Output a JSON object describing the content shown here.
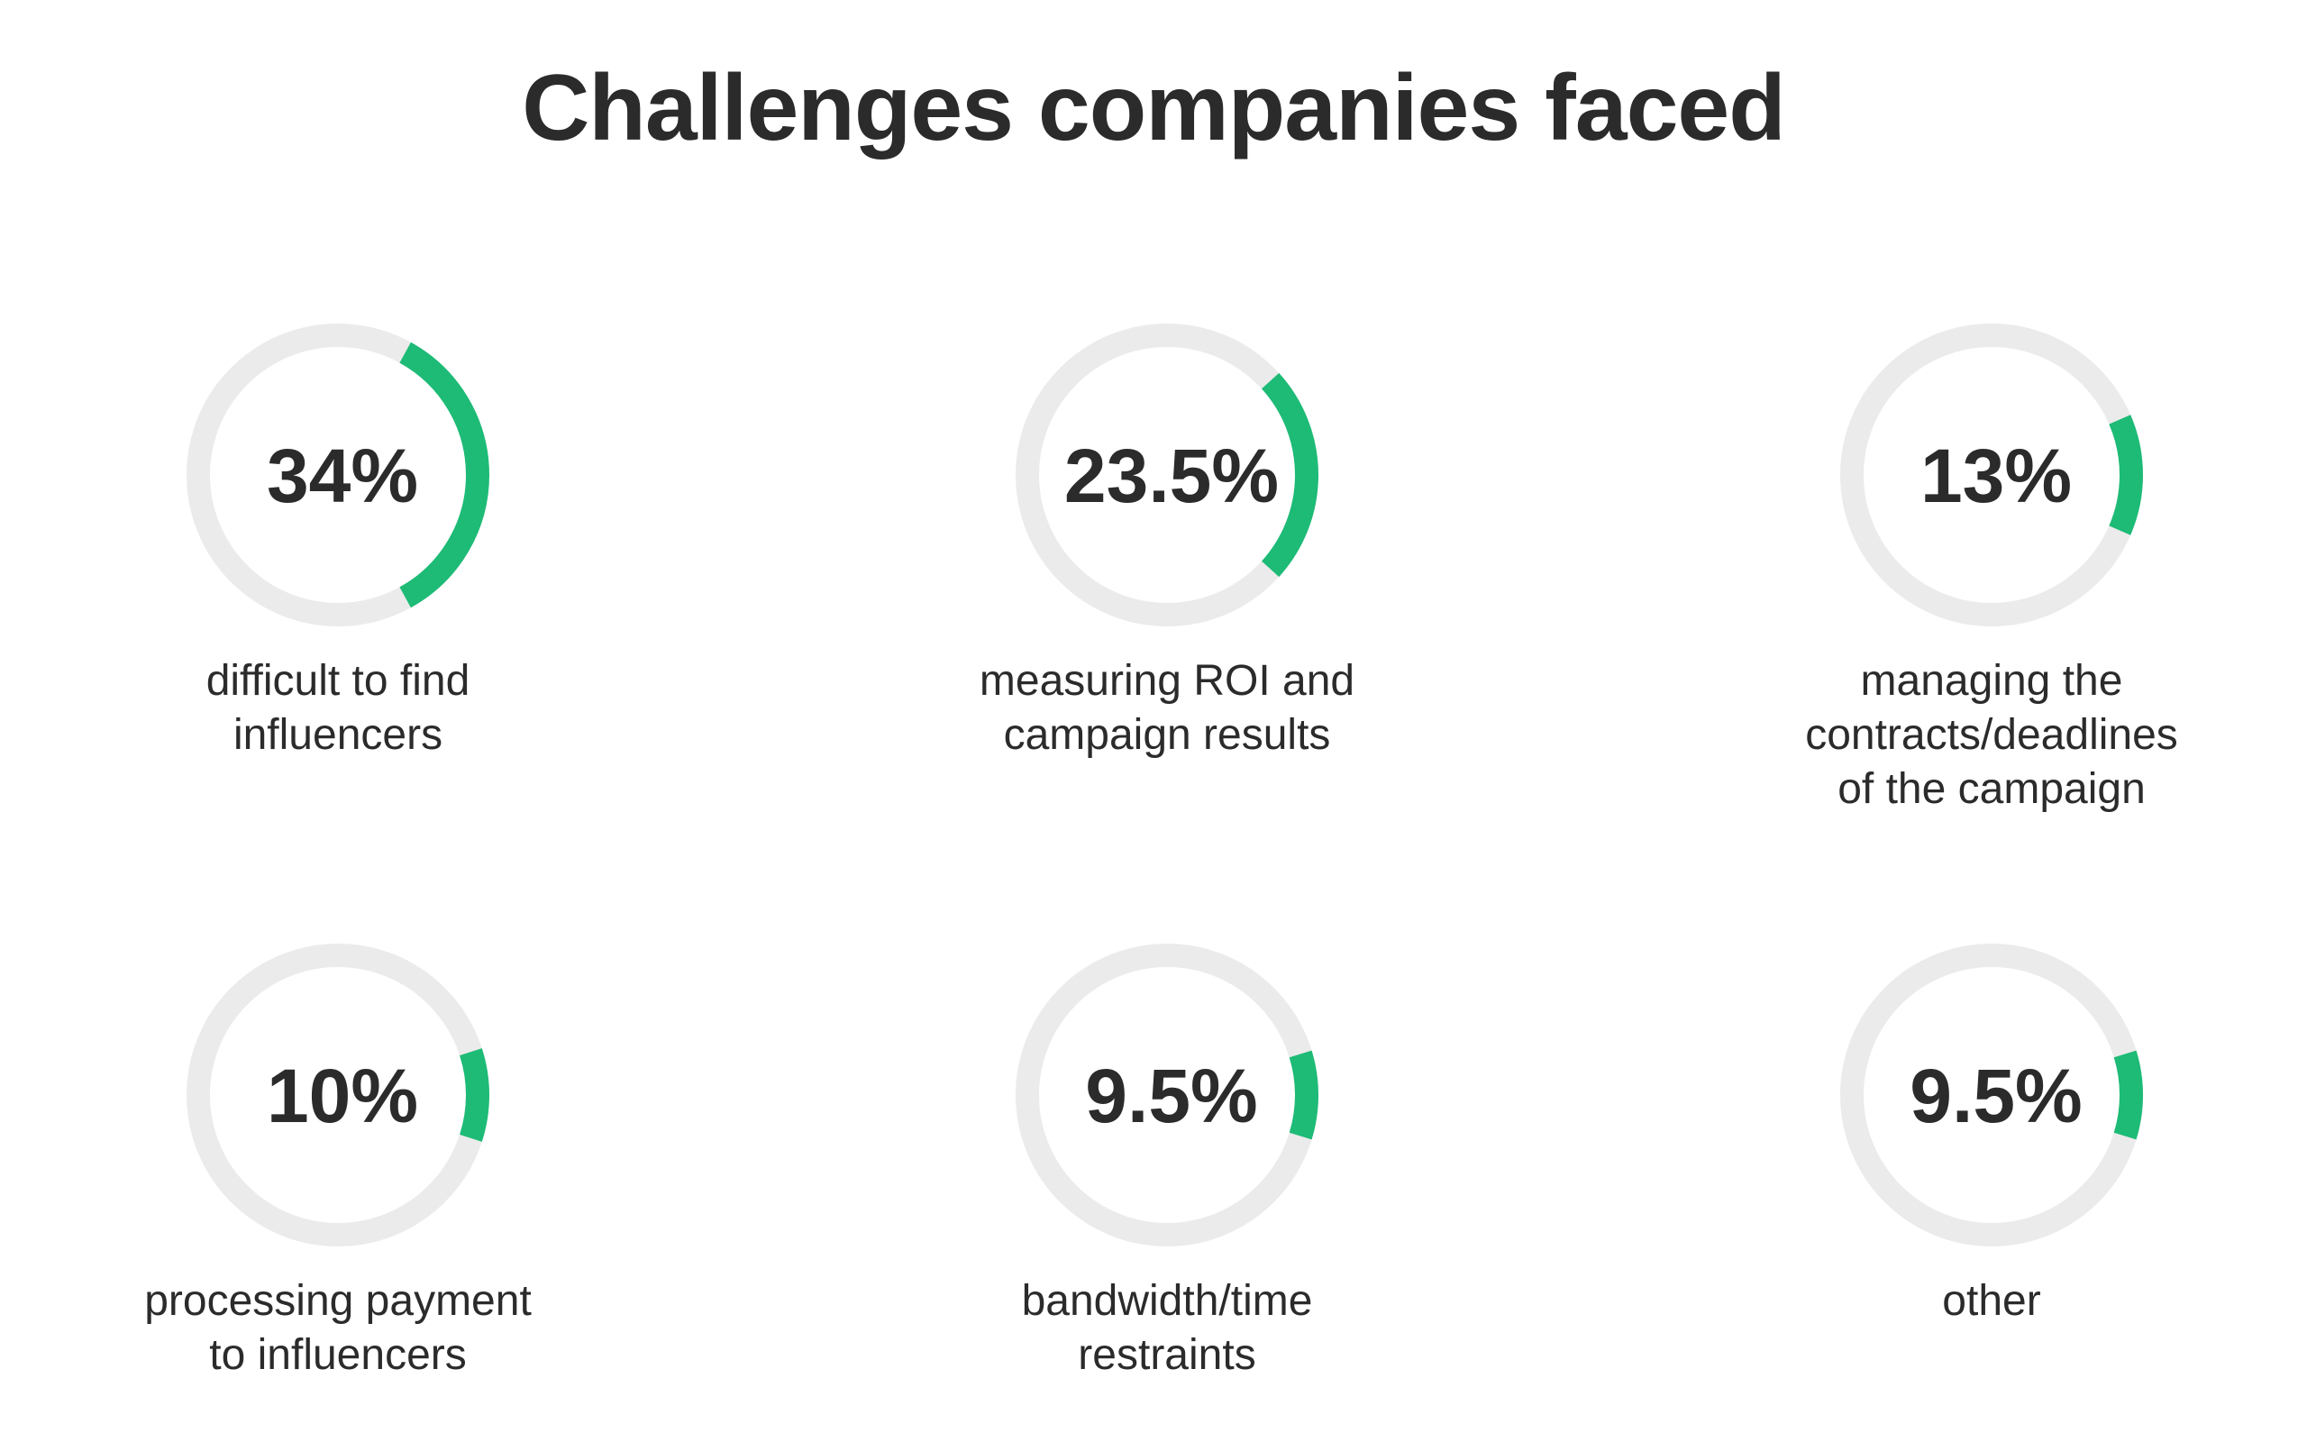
{
  "chart_data": {
    "type": "radial-progress",
    "title": "Challenges companies faced",
    "items": [
      {
        "label_lines": [
          "difficult to find",
          "influencers"
        ],
        "value": 34,
        "display": "34%"
      },
      {
        "label_lines": [
          "measuring ROI and",
          "campaign results"
        ],
        "value": 23.5,
        "display": "23.5%"
      },
      {
        "label_lines": [
          "managing the",
          "contracts/deadlines",
          "of the campaign"
        ],
        "value": 13,
        "display": "13%"
      },
      {
        "label_lines": [
          "processing payment",
          "to influencers"
        ],
        "value": 10,
        "display": "10%"
      },
      {
        "label_lines": [
          "bandwidth/time",
          "restraints"
        ],
        "value": 9.5,
        "display": "9.5%"
      },
      {
        "label_lines": [
          "other"
        ],
        "value": 9.5,
        "display": "9.5%"
      }
    ],
    "colors": {
      "track": "#ebebeb",
      "fill": "#1dbb76",
      "text": "#2b2b2b"
    }
  }
}
